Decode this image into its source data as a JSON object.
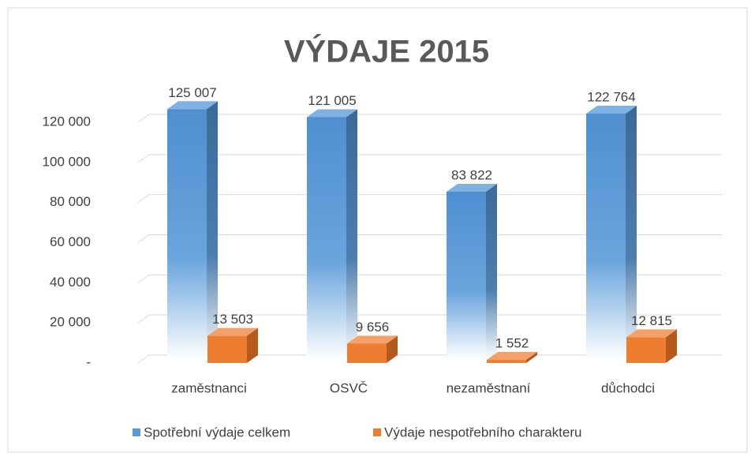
{
  "chart_data": {
    "type": "bar3d",
    "title": "VÝDAJE 2015",
    "categories": [
      "zaměstnanci",
      "OSVČ",
      "nezaměstnaní",
      "důchodci"
    ],
    "series": [
      {
        "name": "Spotřební výdaje celkem",
        "color": "#5b9bd5",
        "values": [
          125007,
          121005,
          83822,
          122764
        ],
        "value_labels": [
          "125 007",
          "121 005",
          "83 822",
          "122 764"
        ]
      },
      {
        "name": "Výdaje nespotřebního charakteru",
        "color": "#ed7d31",
        "values": [
          13503,
          9656,
          1552,
          12815
        ],
        "value_labels": [
          "13 503",
          "9 656",
          "1 552",
          "12 815"
        ]
      }
    ],
    "ylim": [
      0,
      120000
    ],
    "yticks": [
      {
        "value": 0,
        "label": "-"
      },
      {
        "value": 20000,
        "label": "20 000"
      },
      {
        "value": 40000,
        "label": "40 000"
      },
      {
        "value": 60000,
        "label": "60 000"
      },
      {
        "value": 80000,
        "label": "80 000"
      },
      {
        "value": 100000,
        "label": "100 000"
      },
      {
        "value": 120000,
        "label": "120 000"
      }
    ],
    "grid": true,
    "legend": "bottom"
  }
}
